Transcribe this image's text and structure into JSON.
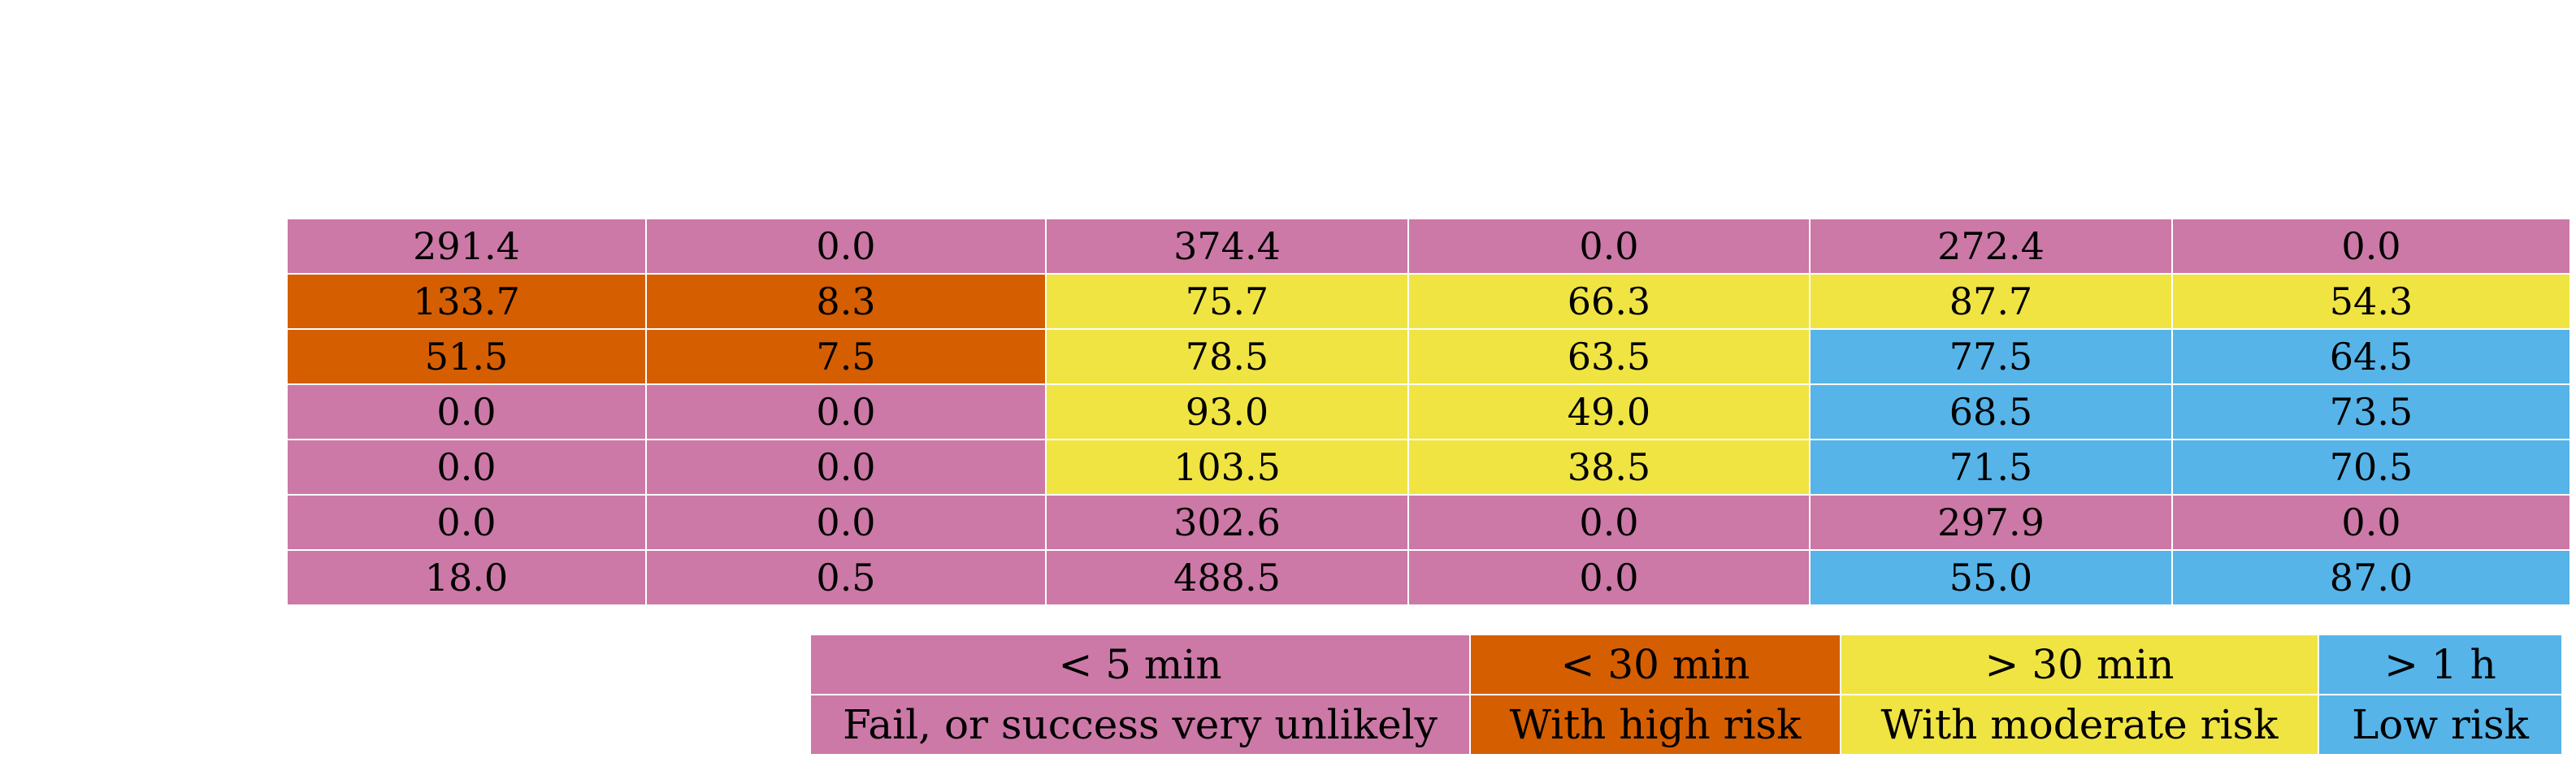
{
  "colors": {
    "fail": "#cc79a7",
    "high_risk": "#d55e00",
    "moderate_risk": "#f0e442",
    "low_risk": "#56b4e9"
  },
  "results": {
    "rows": [
      [
        {
          "value": "291.4",
          "category": "fail"
        },
        {
          "value": "0.0",
          "category": "fail"
        },
        {
          "value": "374.4",
          "category": "fail"
        },
        {
          "value": "0.0",
          "category": "fail"
        },
        {
          "value": "272.4",
          "category": "fail"
        },
        {
          "value": "0.0",
          "category": "fail"
        }
      ],
      [
        {
          "value": "133.7",
          "category": "high_risk"
        },
        {
          "value": "8.3",
          "category": "high_risk"
        },
        {
          "value": "75.7",
          "category": "moderate_risk"
        },
        {
          "value": "66.3",
          "category": "moderate_risk"
        },
        {
          "value": "87.7",
          "category": "moderate_risk"
        },
        {
          "value": "54.3",
          "category": "moderate_risk"
        }
      ],
      [
        {
          "value": "51.5",
          "category": "high_risk"
        },
        {
          "value": "7.5",
          "category": "high_risk"
        },
        {
          "value": "78.5",
          "category": "moderate_risk"
        },
        {
          "value": "63.5",
          "category": "moderate_risk"
        },
        {
          "value": "77.5",
          "category": "low_risk"
        },
        {
          "value": "64.5",
          "category": "low_risk"
        }
      ],
      [
        {
          "value": "0.0",
          "category": "fail"
        },
        {
          "value": "0.0",
          "category": "fail"
        },
        {
          "value": "93.0",
          "category": "moderate_risk"
        },
        {
          "value": "49.0",
          "category": "moderate_risk"
        },
        {
          "value": "68.5",
          "category": "low_risk"
        },
        {
          "value": "73.5",
          "category": "low_risk"
        }
      ],
      [
        {
          "value": "0.0",
          "category": "fail"
        },
        {
          "value": "0.0",
          "category": "fail"
        },
        {
          "value": "103.5",
          "category": "moderate_risk"
        },
        {
          "value": "38.5",
          "category": "moderate_risk"
        },
        {
          "value": "71.5",
          "category": "low_risk"
        },
        {
          "value": "70.5",
          "category": "low_risk"
        }
      ],
      [
        {
          "value": "0.0",
          "category": "fail"
        },
        {
          "value": "0.0",
          "category": "fail"
        },
        {
          "value": "302.6",
          "category": "fail"
        },
        {
          "value": "0.0",
          "category": "fail"
        },
        {
          "value": "297.9",
          "category": "fail"
        },
        {
          "value": "0.0",
          "category": "fail"
        }
      ],
      [
        {
          "value": "18.0",
          "category": "fail"
        },
        {
          "value": "0.5",
          "category": "fail"
        },
        {
          "value": "488.5",
          "category": "fail"
        },
        {
          "value": "0.0",
          "category": "fail"
        },
        {
          "value": "55.0",
          "category": "low_risk"
        },
        {
          "value": "87.0",
          "category": "low_risk"
        }
      ]
    ]
  },
  "legend": {
    "items": [
      {
        "time": "< 5 min",
        "description": "Fail, or success very unlikely",
        "category": "fail"
      },
      {
        "time": "< 30 min",
        "description": "With high risk",
        "category": "high_risk"
      },
      {
        "time": "> 30 min",
        "description": "With moderate risk",
        "category": "moderate_risk"
      },
      {
        "time": "> 1 h",
        "description": "Low risk",
        "category": "low_risk"
      }
    ]
  }
}
